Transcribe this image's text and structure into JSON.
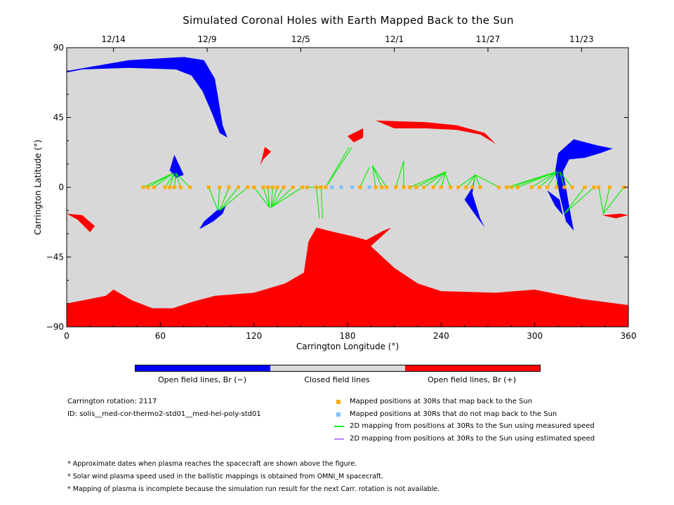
{
  "title": "Simulated Coronal Holes with Earth Mapped Back to the Sun",
  "chart_data": {
    "type": "scatter",
    "title": "Simulated Coronal Holes with Earth Mapped Back to the Sun",
    "xlabel": "Carrington Longitude (°)",
    "ylabel": "Carrington Latitude (°)",
    "xlim": [
      0,
      360
    ],
    "ylim": [
      -90,
      90
    ],
    "xticks": [
      0,
      60,
      120,
      180,
      240,
      300,
      360
    ],
    "yticks": [
      -90,
      -45,
      0,
      45,
      90
    ],
    "top_axis": {
      "labels": [
        "12/14",
        "12/9",
        "12/5",
        "12/1",
        "11/27",
        "11/23"
      ],
      "positions": [
        30,
        90,
        150,
        210,
        270,
        330
      ]
    },
    "colors": {
      "open_neg": "#0000ff",
      "open_pos": "#ff0000",
      "closed": "#d8d8d8",
      "mapped": "#ffaa00",
      "unmapped": "#80c0ff",
      "measured": "#00ee00",
      "estimated": "#c080ff"
    },
    "series": [
      {
        "name": "Mapped positions at 30Rs that map back to the Sun",
        "points": [
          [
            49,
            0
          ],
          [
            52,
            0
          ],
          [
            56,
            0
          ],
          [
            63,
            0
          ],
          [
            66,
            0
          ],
          [
            69,
            0
          ],
          [
            73,
            0
          ],
          [
            79,
            0
          ],
          [
            91,
            0
          ],
          [
            98,
            0
          ],
          [
            104,
            0
          ],
          [
            110,
            0
          ],
          [
            116,
            0
          ],
          [
            120,
            0
          ],
          [
            126,
            0
          ],
          [
            129,
            0
          ],
          [
            132,
            0
          ],
          [
            135,
            0
          ],
          [
            139,
            0
          ],
          [
            145,
            0
          ],
          [
            151,
            0
          ],
          [
            154,
            0
          ],
          [
            160,
            0
          ],
          [
            163,
            0
          ],
          [
            166,
            0
          ],
          [
            188,
            0
          ],
          [
            198,
            0
          ],
          [
            202,
            0
          ],
          [
            205,
            0
          ],
          [
            211,
            0
          ],
          [
            216,
            0
          ],
          [
            220,
            0
          ],
          [
            224,
            0
          ],
          [
            229,
            0
          ],
          [
            235,
            0
          ],
          [
            240,
            0
          ],
          [
            246,
            0
          ],
          [
            251,
            0
          ],
          [
            256,
            0
          ],
          [
            260,
            0
          ],
          [
            265,
            0
          ],
          [
            277,
            0
          ],
          [
            282,
            0
          ],
          [
            285,
            0
          ],
          [
            289,
            0
          ],
          [
            298,
            0
          ],
          [
            303,
            0
          ],
          [
            308,
            0
          ],
          [
            314,
            0
          ],
          [
            319,
            0
          ],
          [
            324,
            0
          ],
          [
            332,
            0
          ],
          [
            338,
            0
          ],
          [
            341,
            0
          ],
          [
            348,
            0
          ],
          [
            357,
            0
          ]
        ]
      },
      {
        "name": "Mapped positions at 30Rs that do not map back to the Sun",
        "points": [
          [
            170,
            0
          ],
          [
            176,
            0
          ],
          [
            183,
            0
          ],
          [
            194,
            0
          ]
        ]
      }
    ],
    "footpoints": [
      [
        [
          49,
          0
        ],
        [
          68,
          9
        ]
      ],
      [
        [
          52,
          0
        ],
        [
          68,
          9
        ]
      ],
      [
        [
          56,
          0
        ],
        [
          68,
          9
        ]
      ],
      [
        [
          63,
          0
        ],
        [
          69,
          9
        ]
      ],
      [
        [
          66,
          0
        ],
        [
          69,
          9
        ]
      ],
      [
        [
          69,
          0
        ],
        [
          70,
          9
        ]
      ],
      [
        [
          73,
          0
        ],
        [
          70,
          9
        ]
      ],
      [
        [
          79,
          0
        ],
        [
          70,
          9
        ]
      ],
      [
        [
          91,
          0
        ],
        [
          97,
          -15
        ]
      ],
      [
        [
          98,
          0
        ],
        [
          97,
          -15
        ]
      ],
      [
        [
          104,
          0
        ],
        [
          98,
          -15
        ]
      ],
      [
        [
          110,
          0
        ],
        [
          98,
          -15
        ]
      ],
      [
        [
          116,
          0
        ],
        [
          98,
          -15
        ]
      ],
      [
        [
          120,
          0
        ],
        [
          130,
          -13
        ]
      ],
      [
        [
          126,
          0
        ],
        [
          130,
          -13
        ]
      ],
      [
        [
          129,
          0
        ],
        [
          130,
          -13
        ]
      ],
      [
        [
          132,
          0
        ],
        [
          131,
          -13
        ]
      ],
      [
        [
          135,
          0
        ],
        [
          131,
          -13
        ]
      ],
      [
        [
          139,
          0
        ],
        [
          131,
          -13
        ]
      ],
      [
        [
          145,
          0
        ],
        [
          131,
          -13
        ]
      ],
      [
        [
          151,
          0
        ],
        [
          131,
          -13
        ]
      ],
      [
        [
          154,
          0
        ],
        [
          162,
          0
        ]
      ],
      [
        [
          160,
          0
        ],
        [
          162,
          -20
        ]
      ],
      [
        [
          163,
          0
        ],
        [
          164,
          -20
        ]
      ],
      [
        [
          166,
          0
        ],
        [
          183,
          26
        ]
      ],
      [
        [
          166,
          0
        ],
        [
          181,
          26
        ]
      ],
      [
        [
          188,
          0
        ],
        [
          194,
          13
        ]
      ],
      [
        [
          198,
          0
        ],
        [
          196,
          14
        ]
      ],
      [
        [
          202,
          0
        ],
        [
          196,
          14
        ]
      ],
      [
        [
          205,
          0
        ],
        [
          196,
          14
        ]
      ],
      [
        [
          211,
          0
        ],
        [
          216,
          17
        ]
      ],
      [
        [
          216,
          0
        ],
        [
          216,
          17
        ]
      ],
      [
        [
          220,
          0
        ],
        [
          243,
          10
        ]
      ],
      [
        [
          224,
          0
        ],
        [
          243,
          10
        ]
      ],
      [
        [
          229,
          0
        ],
        [
          243,
          10
        ]
      ],
      [
        [
          235,
          0
        ],
        [
          243,
          10
        ]
      ],
      [
        [
          240,
          0
        ],
        [
          243,
          10
        ]
      ],
      [
        [
          246,
          0
        ],
        [
          242,
          10
        ]
      ],
      [
        [
          251,
          0
        ],
        [
          262,
          8
        ]
      ],
      [
        [
          256,
          0
        ],
        [
          262,
          8
        ]
      ],
      [
        [
          260,
          0
        ],
        [
          262,
          8
        ]
      ],
      [
        [
          265,
          0
        ],
        [
          262,
          8
        ]
      ],
      [
        [
          277,
          0
        ],
        [
          262,
          8
        ]
      ],
      [
        [
          282,
          0
        ],
        [
          314,
          10
        ]
      ],
      [
        [
          285,
          0
        ],
        [
          314,
          10
        ]
      ],
      [
        [
          289,
          0
        ],
        [
          314,
          10
        ]
      ],
      [
        [
          298,
          0
        ],
        [
          314,
          10
        ]
      ],
      [
        [
          303,
          0
        ],
        [
          314,
          10
        ]
      ],
      [
        [
          308,
          0
        ],
        [
          314,
          10
        ]
      ],
      [
        [
          314,
          0
        ],
        [
          315,
          10
        ]
      ],
      [
        [
          319,
          0
        ],
        [
          316,
          10
        ]
      ],
      [
        [
          324,
          0
        ],
        [
          316,
          10
        ]
      ],
      [
        [
          332,
          0
        ],
        [
          319,
          -17
        ]
      ],
      [
        [
          338,
          0
        ],
        [
          319,
          -17
        ]
      ],
      [
        [
          341,
          0
        ],
        [
          344,
          -17
        ]
      ],
      [
        [
          348,
          0
        ],
        [
          344,
          -17
        ]
      ],
      [
        [
          357,
          0
        ],
        [
          344,
          -17
        ]
      ]
    ]
  },
  "colorbar": {
    "colors": [
      "#0000ff",
      "#d8d8d8",
      "#ff0000"
    ],
    "labels": [
      "Open field lines, Br (−)",
      "Closed field lines",
      "Open field lines, Br (+)"
    ]
  },
  "info": {
    "rotation": "Carrington rotation: 2117",
    "id": "ID: solis__med-cor-thermo2-std01__med-hel-poly-std01"
  },
  "legend": [
    {
      "label": "Mapped positions at 30Rs that map back to the Sun",
      "color": "#ffaa00",
      "kind": "square"
    },
    {
      "label": "Mapped positions at 30Rs that do not map back to the Sun",
      "color": "#80c0ff",
      "kind": "square"
    },
    {
      "label": "2D mapping from positions at 30Rs to the Sun using measured speed",
      "color": "#00ee00",
      "kind": "line"
    },
    {
      "label": "2D mapping from positions at 30Rs to the Sun using estimated speed",
      "color": "#c080ff",
      "kind": "line"
    }
  ],
  "footnotes": [
    "* Approximate dates when plasma reaches the spacecraft are shown above the figure.",
    "* Solar wind plasma speed used in the ballistic mappings is obtained from OMNI_M spacecraft.",
    "* Mapping of plasma is incomplete because the simulation run result for the next Carr. rotation is not available."
  ]
}
